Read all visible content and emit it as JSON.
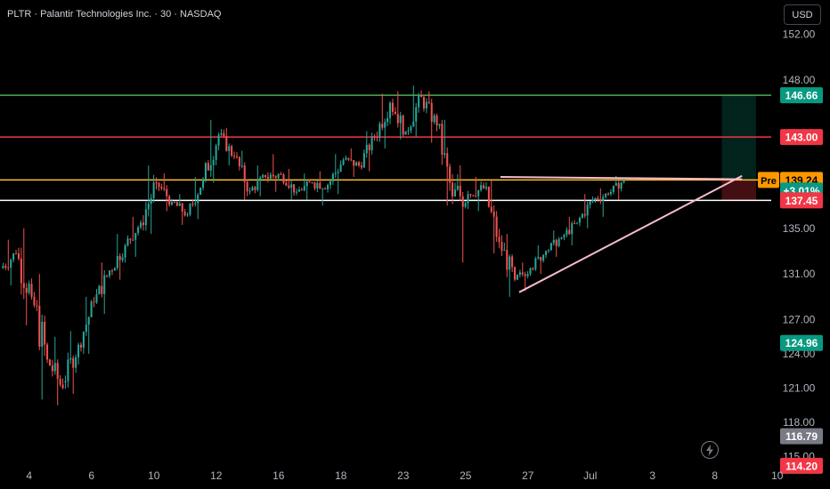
{
  "header": {
    "title": "PLTR · Palantir Technologies Inc. · 30 · NASDAQ"
  },
  "toolbar": {
    "currency_label": "USD"
  },
  "icons": {
    "flash": "flash-icon",
    "lightning": "lightning-icon"
  },
  "chart_data": {
    "type": "candlestick",
    "symbol": "PLTR",
    "interval": "30",
    "exchange": "NASDAQ",
    "ylim": [
      114.5,
      155.0
    ],
    "y_ticks": [
      "152.00",
      "148.00",
      "139.24",
      "135.00",
      "131.00",
      "127.00",
      "124.00",
      "121.00",
      "118.00",
      "115.00"
    ],
    "x_ticks": [
      "4",
      "6",
      "10",
      "12",
      "16",
      "18",
      "23",
      "25",
      "27",
      "Jul",
      "3",
      "8",
      "10"
    ],
    "x_tick_positions": [
      0.5,
      4.5,
      8.5,
      12.5,
      16.5,
      20.5,
      24.5,
      28.5,
      32.5,
      36.5,
      40.5,
      44.5,
      48.5
    ],
    "colors": {
      "up": "#26a69a",
      "down": "#ef5350",
      "background": "#000000"
    },
    "daily_ohlc": [
      [
        131.5,
        134.0,
        130.0,
        132.8
      ],
      [
        132.8,
        135.0,
        126.5,
        129.0
      ],
      [
        129.0,
        131.0,
        120.0,
        123.5
      ],
      [
        123.5,
        125.5,
        119.5,
        121.0
      ],
      [
        121.5,
        126.0,
        120.5,
        124.8
      ],
      [
        124.8,
        129.0,
        124.0,
        128.5
      ],
      [
        128.5,
        132.0,
        127.5,
        131.3
      ],
      [
        131.3,
        134.5,
        130.5,
        133.5
      ],
      [
        133.5,
        136.0,
        132.5,
        135.5
      ],
      [
        135.5,
        140.5,
        134.5,
        139.0
      ],
      [
        139.0,
        139.8,
        136.5,
        137.3
      ],
      [
        137.3,
        138.0,
        135.3,
        136.2
      ],
      [
        136.2,
        139.5,
        135.8,
        139.3
      ],
      [
        139.3,
        144.5,
        139.0,
        143.2
      ],
      [
        143.2,
        143.8,
        140.5,
        141.3
      ],
      [
        141.3,
        141.8,
        137.5,
        138.3
      ],
      [
        138.3,
        140.5,
        137.8,
        139.5
      ],
      [
        139.5,
        141.5,
        138.2,
        139.7
      ],
      [
        139.7,
        140.2,
        137.5,
        138.2
      ],
      [
        138.2,
        139.8,
        137.5,
        139.0
      ],
      [
        139.0,
        140.0,
        137.0,
        138.8
      ],
      [
        138.8,
        141.5,
        138.0,
        141.0
      ],
      [
        141.0,
        142.0,
        139.5,
        140.5
      ],
      [
        140.5,
        143.5,
        140.0,
        143.0
      ],
      [
        143.0,
        146.8,
        142.0,
        146.0
      ],
      [
        146.0,
        147.0,
        142.8,
        143.5
      ],
      [
        143.5,
        147.5,
        143.0,
        146.5
      ],
      [
        146.5,
        147.0,
        142.5,
        144.0
      ],
      [
        144.0,
        144.5,
        137.0,
        137.8
      ],
      [
        137.8,
        140.5,
        132.0,
        138.0
      ],
      [
        138.0,
        139.5,
        136.5,
        138.5
      ],
      [
        138.5,
        139.2,
        132.8,
        133.8
      ],
      [
        133.8,
        134.5,
        129.0,
        130.5
      ],
      [
        130.5,
        132.0,
        129.5,
        131.5
      ],
      [
        131.5,
        133.5,
        131.0,
        133.0
      ],
      [
        133.0,
        134.8,
        132.5,
        134.2
      ],
      [
        134.2,
        136.0,
        133.5,
        135.5
      ],
      [
        135.5,
        138.0,
        135.0,
        137.5
      ],
      [
        137.5,
        138.5,
        136.0,
        138.0
      ],
      [
        138.0,
        139.6,
        137.5,
        139.24
      ]
    ],
    "horizontal_levels": [
      {
        "price": 146.66,
        "label": "146.66",
        "color": "#4caf50",
        "text_color": "#ffffff"
      },
      {
        "price": 143.0,
        "label": "143.00",
        "color": "#f23645",
        "text_color": "#ffffff"
      },
      {
        "price": 139.24,
        "label": "139.24",
        "color": "#fbc02d",
        "text_color": "#000000"
      },
      {
        "price": 137.45,
        "label": "137.45",
        "color": "#ffffff",
        "text_color": "#ffffff"
      }
    ],
    "price_badges": [
      {
        "label": "146.66",
        "price": 146.66,
        "bg": "#089981",
        "fg": "#ffffff"
      },
      {
        "label": "143.00",
        "price": 143.0,
        "bg": "#f23645",
        "fg": "#ffffff"
      },
      {
        "label": "139.24",
        "price": 139.24,
        "bg": "#ff9800",
        "fg": "#000000",
        "tag": "Pre"
      },
      {
        "label": "+3.01%",
        "price": 138.3,
        "bg": "#089981",
        "fg": "#ffffff"
      },
      {
        "label": "137.45",
        "price": 137.45,
        "bg": "#f23645",
        "fg": "#ffffff"
      },
      {
        "label": "124.96",
        "price": 124.96,
        "bg": "#089981",
        "fg": "#ffffff"
      },
      {
        "label": "116.79",
        "price": 116.79,
        "bg": "#787b86",
        "fg": "#ffffff"
      },
      {
        "label": "114.20",
        "price": 114.2,
        "bg": "#f23645",
        "fg": "#ffffff"
      }
    ],
    "trendlines": [
      {
        "from": {
          "day": 33.2,
          "price": 129.4
        },
        "to": {
          "day": 47.5,
          "price": 139.6
        },
        "color": "#f8bbd0"
      },
      {
        "from": {
          "day": 32.0,
          "price": 139.5
        },
        "to": {
          "day": 47.5,
          "price": 139.3
        },
        "color": "#f8bbd0"
      }
    ],
    "position_zones": [
      {
        "x_from": 46.2,
        "x_to": 48.4,
        "price_from": 139.24,
        "price_to": 146.66,
        "color": "rgba(8,153,129,0.22)"
      },
      {
        "x_from": 46.2,
        "x_to": 48.4,
        "price_from": 137.45,
        "price_to": 139.24,
        "color": "rgba(242,54,69,0.28)"
      }
    ]
  }
}
